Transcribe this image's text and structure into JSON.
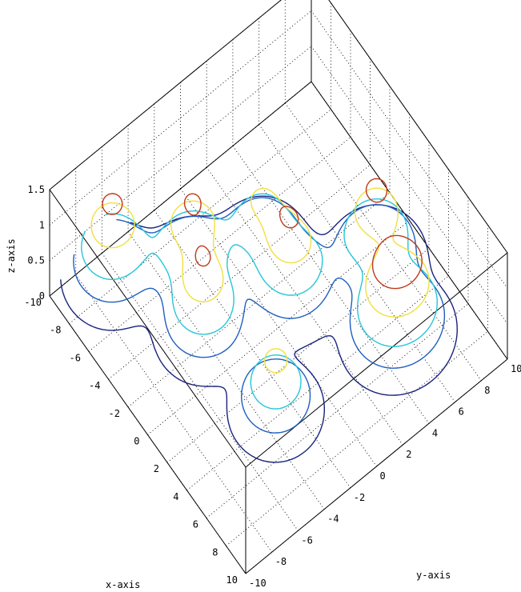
{
  "chart_data": {
    "type": "contour3d",
    "title": "",
    "xlabel": "x-axis",
    "ylabel": "y-axis",
    "zlabel": "z-axis",
    "xlim": [
      -10,
      10
    ],
    "ylim": [
      -10,
      10
    ],
    "zlim": [
      0,
      1.5
    ],
    "x_ticks": [
      "-10",
      "-8",
      "-6",
      "-4",
      "-2",
      "0",
      "2",
      "4",
      "6",
      "8",
      "10"
    ],
    "y_ticks": [
      "-10",
      "-8",
      "-6",
      "-4",
      "-2",
      "0",
      "2",
      "4",
      "6",
      "8",
      "10"
    ],
    "z_ticks": [
      "0",
      "0.5",
      "1",
      "1.5"
    ],
    "grid": true,
    "colormap": [
      "#1a237e",
      "#1f5fbf",
      "#26c6da",
      "#f0e040",
      "#c0391b"
    ],
    "contour_levels": [
      0.1,
      0.3,
      0.5,
      0.8,
      1.1
    ],
    "peaks": [
      {
        "x": -8.3,
        "y": -6.5,
        "z": 1.2
      },
      {
        "x": -5.5,
        "y": -2.5,
        "z": 1.1
      },
      {
        "x": -4.0,
        "y": 1.7,
        "z": 0.8
      },
      {
        "x": -2.3,
        "y": -4.0,
        "z": 1.1
      },
      {
        "x": -0.8,
        "y": 1.6,
        "z": 1.1
      },
      {
        "x": 0.9,
        "y": 6.8,
        "z": 1.2
      },
      {
        "x": 5.0,
        "y": 4.8,
        "z": 1.15
      },
      {
        "x": 5.2,
        "y": 6.0,
        "z": 0.8
      },
      {
        "x": 4.0,
        "y": -3.2,
        "z": 0.9
      }
    ]
  }
}
